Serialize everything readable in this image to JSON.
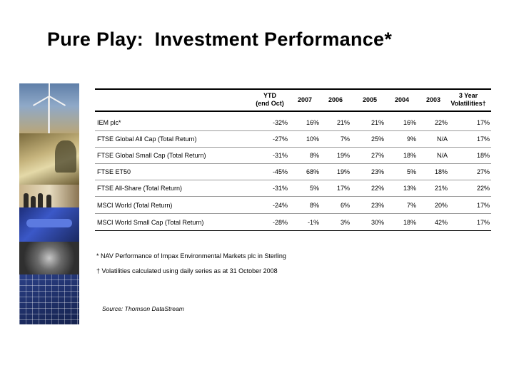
{
  "title": "Pure Play:  Investment Performance*",
  "table": {
    "headers": [
      {
        "line1": "YTD",
        "line2": "(end Oct)"
      },
      {
        "line1": "2007",
        "line2": ""
      },
      {
        "line1": "2006",
        "line2": ""
      },
      {
        "line1": "2005",
        "line2": ""
      },
      {
        "line1": "2004",
        "line2": ""
      },
      {
        "line1": "2003",
        "line2": ""
      },
      {
        "line1": "3 Year",
        "line2": "Volatilities†"
      }
    ],
    "rows": [
      {
        "label": "IEM plc*",
        "values": [
          "-32%",
          "16%",
          "21%",
          "21%",
          "16%",
          "22%",
          "17%"
        ]
      },
      {
        "label": "FTSE Global All Cap (Total Return)",
        "values": [
          "-27%",
          "10%",
          "7%",
          "25%",
          "9%",
          "N/A",
          "17%"
        ]
      },
      {
        "label": "FTSE Global Small Cap (Total Return)",
        "values": [
          "-31%",
          "8%",
          "19%",
          "27%",
          "18%",
          "N/A",
          "18%"
        ]
      },
      {
        "label": "FTSE ET50",
        "values": [
          "-45%",
          "68%",
          "19%",
          "23%",
          "5%",
          "18%",
          "27%"
        ]
      },
      {
        "label": "FTSE All-Share (Total Return)",
        "values": [
          "-31%",
          "5%",
          "17%",
          "22%",
          "13%",
          "21%",
          "22%"
        ]
      },
      {
        "label": "MSCI World (Total Return)",
        "values": [
          "-24%",
          "8%",
          "6%",
          "23%",
          "7%",
          "20%",
          "17%"
        ]
      },
      {
        "label": "MSCI World Small Cap (Total Return)",
        "values": [
          "-28%",
          "-1%",
          "3%",
          "30%",
          "18%",
          "42%",
          "17%"
        ]
      }
    ]
  },
  "footnotes": [
    "* NAV Performance of Impax Environmental Markets plc in Sterling",
    "† Volatilities calculated using daily series as at 31 October 2008"
  ],
  "source": "Source: Thomson DataStream"
}
